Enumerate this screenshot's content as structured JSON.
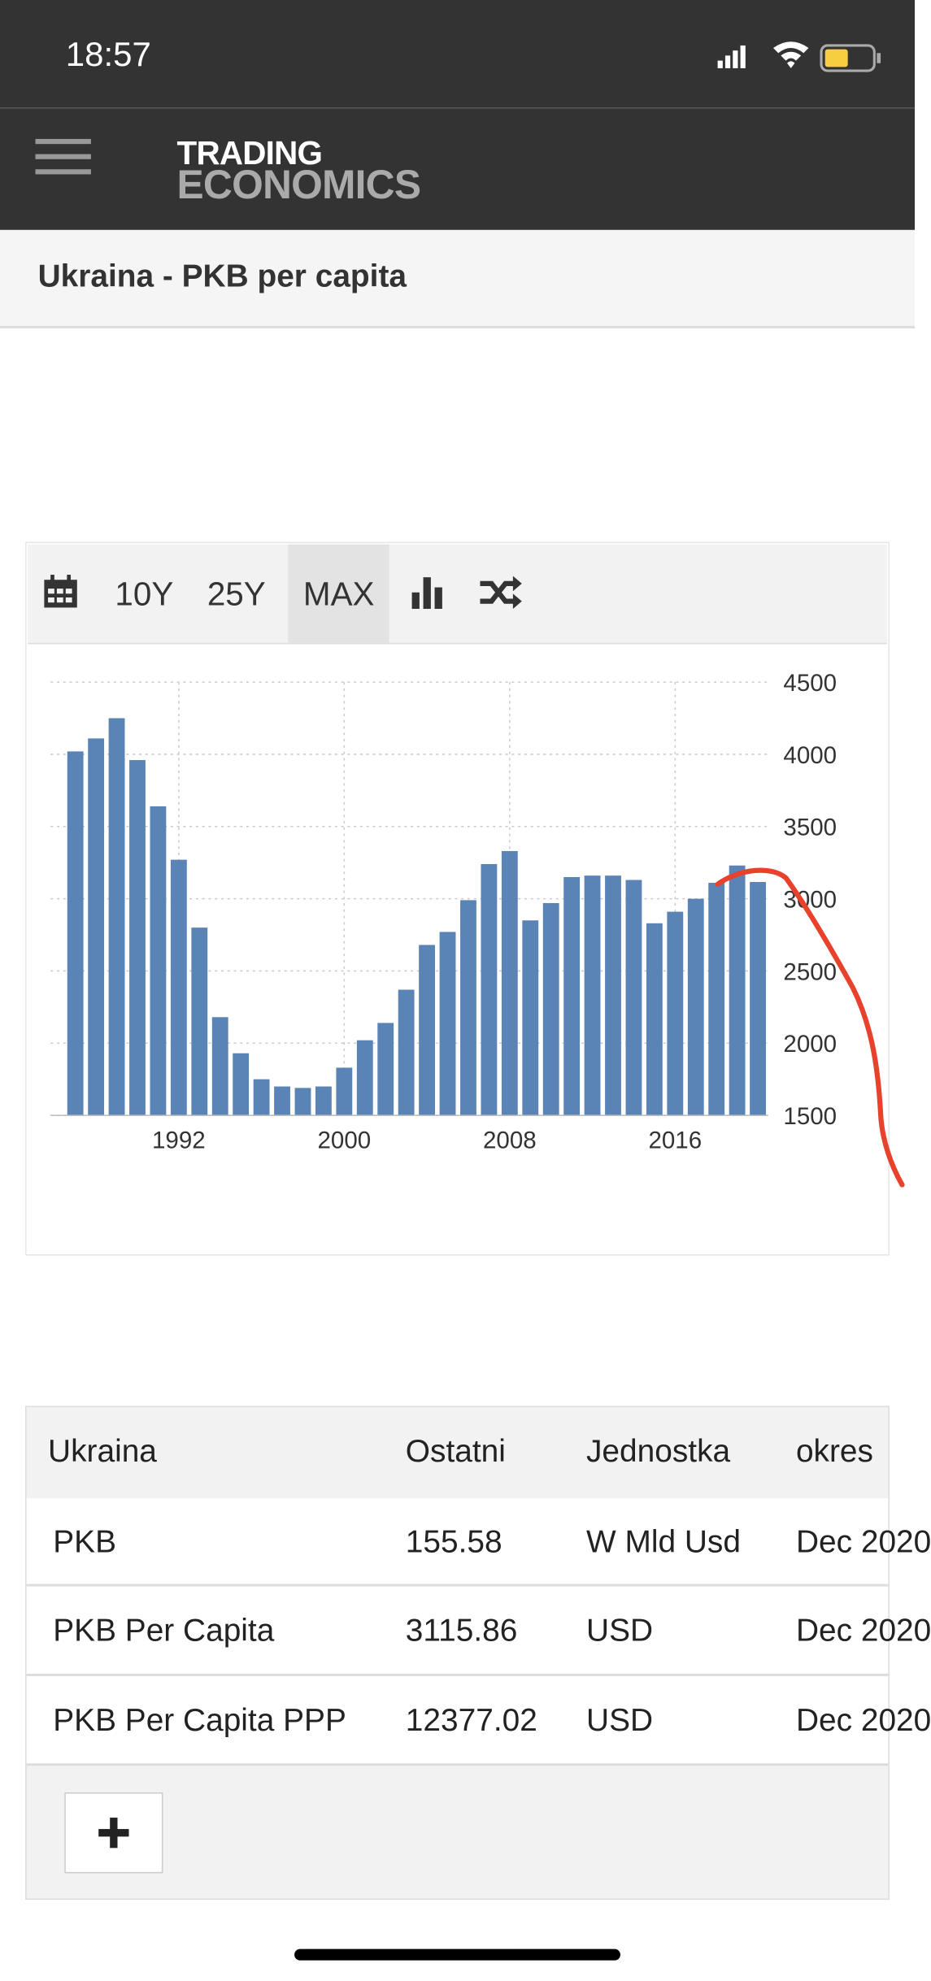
{
  "status": {
    "time": "18:57"
  },
  "header": {
    "logo_top": "TRADING",
    "logo_bottom": "ECONOMICS"
  },
  "page_title": "Ukraina - PKB per capita",
  "toolbar": {
    "buttons": [
      "10Y",
      "25Y",
      "MAX"
    ]
  },
  "chart_data": {
    "type": "bar",
    "color": "#5a84b6",
    "grid": true,
    "x": [
      1987,
      1988,
      1989,
      1990,
      1991,
      1992,
      1993,
      1994,
      1995,
      1996,
      1997,
      1998,
      1999,
      2000,
      2001,
      2002,
      2003,
      2004,
      2005,
      2006,
      2007,
      2008,
      2009,
      2010,
      2011,
      2012,
      2013,
      2014,
      2015,
      2016,
      2017,
      2018,
      2019,
      2020
    ],
    "values": [
      4020,
      4110,
      4250,
      3960,
      3640,
      3270,
      2800,
      2180,
      1930,
      1750,
      1700,
      1690,
      1700,
      1830,
      2020,
      2140,
      2370,
      2680,
      2770,
      2990,
      3240,
      3330,
      2850,
      2970,
      3150,
      3160,
      3160,
      3130,
      2830,
      2910,
      3000,
      3110,
      3230,
      3115.86
    ],
    "xlim": [
      1985.8,
      2020.5
    ],
    "xticks": [
      1992,
      2000,
      2008,
      2016
    ],
    "ylim": [
      1500,
      4500
    ],
    "yticks": [
      1500,
      2000,
      2500,
      3000,
      3500,
      4000,
      4500
    ]
  },
  "table": {
    "header": [
      "Ukraina",
      "Ostatni",
      "Jednostka",
      "okres"
    ],
    "rows": [
      [
        "PKB",
        "155.58",
        "W Mld Usd",
        "Dec 2020"
      ],
      [
        "PKB Per Capita",
        "3115.86",
        "USD",
        "Dec 2020"
      ],
      [
        "PKB Per Capita PPP",
        "12377.02",
        "USD",
        "Dec 2020"
      ]
    ]
  }
}
